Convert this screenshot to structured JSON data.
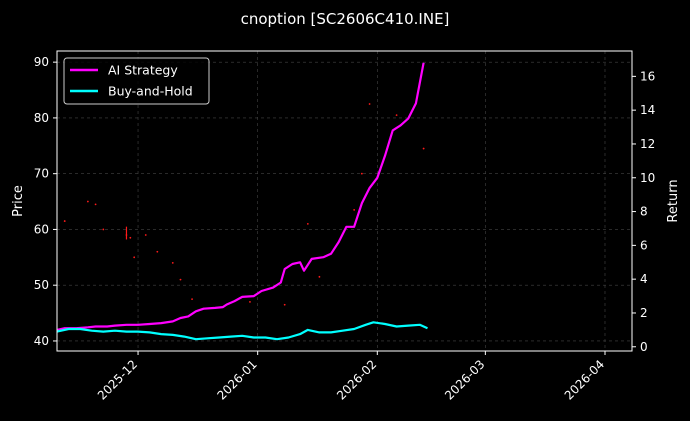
{
  "chart_data": {
    "type": "line",
    "title": "cnoption [SC2606C410.INE]",
    "xlabel": "",
    "ylabel": "Price",
    "y2label": "Return",
    "x_ticks": [
      "2025-12",
      "2026-01",
      "2026-02",
      "2026-03",
      "2026-04"
    ],
    "x_range": [
      "2025-11-10",
      "2026-04-08"
    ],
    "y_ticks": [
      40,
      50,
      60,
      70,
      80,
      90
    ],
    "y_range": [
      38.2,
      92.0
    ],
    "y2_ticks": [
      0,
      2,
      4,
      6,
      8,
      10,
      12,
      14,
      16
    ],
    "y2_range": [
      -0.25,
      17.5
    ],
    "grid": true,
    "legend": {
      "position": "top-left",
      "entries": [
        "AI Strategy",
        "Buy-and-Hold"
      ]
    },
    "colors": {
      "ai_strategy": "#ff00ff",
      "buy_and_hold": "#00ffff",
      "price_points": "#ff1a1a",
      "grid": "#444444",
      "background": "#000000",
      "text": "#ffffff"
    },
    "series": [
      {
        "name": "AI Strategy",
        "axis": "right",
        "points": [
          [
            "2025-11-10",
            1.0
          ],
          [
            "2025-11-12",
            1.1
          ],
          [
            "2025-11-15",
            1.1
          ],
          [
            "2025-11-18",
            1.15
          ],
          [
            "2025-11-20",
            1.2
          ],
          [
            "2025-11-23",
            1.2
          ],
          [
            "2025-11-25",
            1.25
          ],
          [
            "2025-11-28",
            1.3
          ],
          [
            "2025-12-01",
            1.3
          ],
          [
            "2025-12-04",
            1.35
          ],
          [
            "2025-12-07",
            1.4
          ],
          [
            "2025-12-10",
            1.5
          ],
          [
            "2025-12-12",
            1.7
          ],
          [
            "2025-12-14",
            1.8
          ],
          [
            "2025-12-16",
            2.1
          ],
          [
            "2025-12-18",
            2.25
          ],
          [
            "2025-12-21",
            2.3
          ],
          [
            "2025-12-23",
            2.35
          ],
          [
            "2025-12-24",
            2.5
          ],
          [
            "2025-12-26",
            2.7
          ],
          [
            "2025-12-28",
            2.95
          ],
          [
            "2025-12-31",
            3.0
          ],
          [
            "2026-01-02",
            3.3
          ],
          [
            "2026-01-05",
            3.5
          ],
          [
            "2026-01-07",
            3.8
          ],
          [
            "2026-01-08",
            4.6
          ],
          [
            "2026-01-10",
            4.9
          ],
          [
            "2026-01-12",
            5.0
          ],
          [
            "2026-01-13",
            4.5
          ],
          [
            "2026-01-15",
            5.2
          ],
          [
            "2026-01-18",
            5.3
          ],
          [
            "2026-01-20",
            5.5
          ],
          [
            "2026-01-22",
            6.2
          ],
          [
            "2026-01-24",
            7.1
          ],
          [
            "2026-01-26",
            7.1
          ],
          [
            "2026-01-28",
            8.5
          ],
          [
            "2026-01-30",
            9.4
          ],
          [
            "2026-02-01",
            10.0
          ],
          [
            "2026-02-03",
            11.3
          ],
          [
            "2026-02-05",
            12.8
          ],
          [
            "2026-02-07",
            13.1
          ],
          [
            "2026-02-09",
            13.5
          ],
          [
            "2026-02-11",
            14.4
          ],
          [
            "2026-02-13",
            16.8
          ]
        ]
      },
      {
        "name": "Buy-and-Hold",
        "axis": "right",
        "points": [
          [
            "2025-11-10",
            0.9
          ],
          [
            "2025-11-13",
            1.05
          ],
          [
            "2025-11-16",
            1.05
          ],
          [
            "2025-11-19",
            0.95
          ],
          [
            "2025-11-22",
            0.9
          ],
          [
            "2025-11-25",
            0.95
          ],
          [
            "2025-11-28",
            0.9
          ],
          [
            "2025-12-01",
            0.9
          ],
          [
            "2025-12-04",
            0.85
          ],
          [
            "2025-12-07",
            0.75
          ],
          [
            "2025-12-10",
            0.7
          ],
          [
            "2025-12-13",
            0.6
          ],
          [
            "2025-12-16",
            0.45
          ],
          [
            "2025-12-19",
            0.5
          ],
          [
            "2025-12-22",
            0.55
          ],
          [
            "2025-12-25",
            0.6
          ],
          [
            "2025-12-28",
            0.65
          ],
          [
            "2025-12-31",
            0.55
          ],
          [
            "2026-01-03",
            0.55
          ],
          [
            "2026-01-06",
            0.45
          ],
          [
            "2026-01-09",
            0.55
          ],
          [
            "2026-01-12",
            0.75
          ],
          [
            "2026-01-14",
            1.0
          ],
          [
            "2026-01-17",
            0.85
          ],
          [
            "2026-01-20",
            0.85
          ],
          [
            "2026-01-23",
            0.95
          ],
          [
            "2026-01-26",
            1.05
          ],
          [
            "2026-01-29",
            1.3
          ],
          [
            "2026-01-31",
            1.45
          ],
          [
            "2026-02-03",
            1.35
          ],
          [
            "2026-02-06",
            1.2
          ],
          [
            "2026-02-09",
            1.25
          ],
          [
            "2026-02-12",
            1.3
          ],
          [
            "2026-02-14",
            1.1
          ]
        ]
      },
      {
        "name": "Price",
        "axis": "left",
        "style": "scatter",
        "points": [
          [
            "2025-11-12",
            61.5
          ],
          [
            "2025-11-18",
            65.0
          ],
          [
            "2025-11-20",
            64.5
          ],
          [
            "2025-11-22",
            60.0
          ],
          [
            "2025-11-28",
            59.0
          ],
          [
            "2025-11-29",
            58.5
          ],
          [
            "2025-11-30",
            55.0
          ],
          [
            "2025-12-03",
            59.0
          ],
          [
            "2025-12-06",
            56.0
          ],
          [
            "2025-12-10",
            54.0
          ],
          [
            "2025-12-12",
            51.0
          ],
          [
            "2025-12-15",
            47.5
          ],
          [
            "2025-12-30",
            47.0
          ],
          [
            "2026-01-08",
            46.5
          ],
          [
            "2026-01-14",
            61.0
          ],
          [
            "2026-01-17",
            51.5
          ],
          [
            "2026-01-26",
            63.5
          ],
          [
            "2026-01-28",
            70.0
          ],
          [
            "2026-01-30",
            82.5
          ],
          [
            "2026-02-06",
            80.5
          ],
          [
            "2026-02-13",
            74.5
          ]
        ]
      }
    ]
  }
}
